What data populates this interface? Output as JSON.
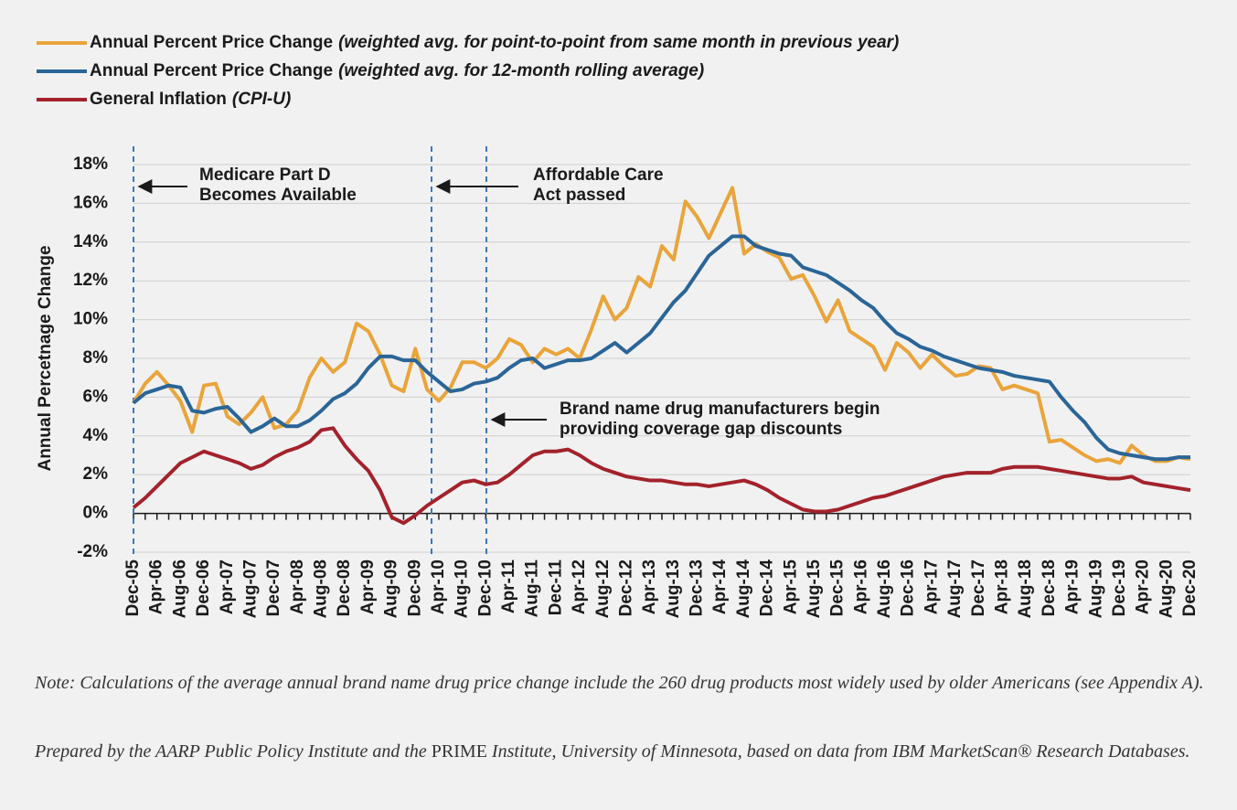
{
  "chart_data": {
    "type": "line",
    "y_label": "Annual Percetnage Change",
    "categories": [
      "Dec-05",
      null,
      "Apr-06",
      null,
      "Aug-06",
      null,
      "Dec-06",
      null,
      "Apr-07",
      null,
      "Aug-07",
      null,
      "Dec-07",
      null,
      "Apr-08",
      null,
      "Aug-08",
      null,
      "Dec-08",
      null,
      "Apr-09",
      null,
      "Aug-09",
      null,
      "Dec-09",
      null,
      "Apr-10",
      null,
      "Aug-10",
      null,
      "Dec-10",
      null,
      "Apr-11",
      null,
      "Aug-11",
      null,
      "Dec-11",
      null,
      "Apr-12",
      null,
      "Aug-12",
      null,
      "Dec-12",
      null,
      "Apr-13",
      null,
      "Aug-13",
      null,
      "Dec-13",
      null,
      "Apr-14",
      null,
      "Aug-14",
      null,
      "Dec-14",
      null,
      "Apr-15",
      null,
      "Aug-15",
      null,
      "Dec-15",
      null,
      "Apr-16",
      null,
      "Aug-16",
      null,
      "Dec-16",
      null,
      "Apr-17",
      null,
      "Aug-17",
      null,
      "Dec-17",
      null,
      "Apr-18",
      null,
      "Aug-18",
      null,
      "Dec-18",
      null,
      "Apr-19",
      null,
      "Aug-19",
      null,
      "Dec-19",
      null,
      "Apr-20",
      null,
      "Aug-20",
      null,
      "Dec-20"
    ],
    "series": [
      {
        "name": "Annual Percent Price Change",
        "note": "(weighted avg. for point-to-point from same month in previous year)",
        "color": "#e9a43a",
        "values": [
          5.7,
          6.7,
          7.3,
          6.6,
          5.8,
          4.2,
          6.6,
          6.7,
          5.0,
          4.6,
          5.2,
          6.0,
          4.4,
          4.6,
          5.3,
          7.0,
          8.0,
          7.3,
          7.8,
          9.8,
          9.4,
          8.2,
          6.6,
          6.3,
          8.5,
          6.4,
          5.8,
          6.5,
          7.8,
          7.8,
          7.5,
          8.0,
          9.0,
          8.7,
          7.8,
          8.5,
          8.2,
          8.5,
          8.0,
          9.5,
          11.2,
          10.0,
          10.6,
          12.2,
          11.7,
          13.8,
          13.1,
          16.1,
          15.3,
          14.2,
          15.5,
          16.8,
          13.4,
          13.9,
          13.5,
          13.2,
          12.1,
          12.3,
          11.2,
          9.9,
          11.0,
          9.4,
          9.0,
          8.6,
          7.4,
          8.8,
          8.3,
          7.5,
          8.2,
          7.6,
          7.1,
          7.2,
          7.6,
          7.5,
          6.4,
          6.6,
          6.4,
          6.2,
          3.7,
          3.8,
          3.4,
          3.0,
          2.7,
          2.8,
          2.6,
          3.5,
          3.0,
          2.7,
          2.7,
          2.9,
          2.8
        ]
      },
      {
        "name": "Annual Percent Price Change",
        "note": "(weighted avg. for 12-month rolling average)",
        "color": "#2b6597",
        "values": [
          5.7,
          6.2,
          6.4,
          6.6,
          6.5,
          5.3,
          5.2,
          5.4,
          5.5,
          4.9,
          4.2,
          4.5,
          4.9,
          4.5,
          4.5,
          4.8,
          5.3,
          5.9,
          6.2,
          6.7,
          7.5,
          8.1,
          8.1,
          7.9,
          7.9,
          7.3,
          6.8,
          6.3,
          6.4,
          6.7,
          6.8,
          7.0,
          7.5,
          7.9,
          8.0,
          7.5,
          7.7,
          7.9,
          7.9,
          8.0,
          8.4,
          8.8,
          8.3,
          8.8,
          9.3,
          10.1,
          10.9,
          11.5,
          12.4,
          13.3,
          13.8,
          14.3,
          14.3,
          13.8,
          13.6,
          13.4,
          13.3,
          12.7,
          12.5,
          12.3,
          11.9,
          11.5,
          11.0,
          10.6,
          9.9,
          9.3,
          9.0,
          8.6,
          8.4,
          8.1,
          7.9,
          7.7,
          7.5,
          7.4,
          7.3,
          7.1,
          7.0,
          6.9,
          6.8,
          6.0,
          5.3,
          4.7,
          3.9,
          3.3,
          3.1,
          3.0,
          2.9,
          2.8,
          2.8,
          2.9,
          2.9
        ]
      },
      {
        "name": "General Inflation",
        "note": "(CPI-U)",
        "color": "#a3222b",
        "values": [
          0.3,
          0.8,
          1.4,
          2.0,
          2.6,
          2.9,
          3.2,
          3.0,
          2.8,
          2.6,
          2.3,
          2.5,
          2.9,
          3.2,
          3.4,
          3.7,
          4.3,
          4.4,
          3.5,
          2.8,
          2.2,
          1.2,
          -0.2,
          -0.5,
          -0.1,
          0.4,
          0.8,
          1.2,
          1.6,
          1.7,
          1.5,
          1.6,
          2.0,
          2.5,
          3.0,
          3.2,
          3.2,
          3.3,
          3.0,
          2.6,
          2.3,
          2.1,
          1.9,
          1.8,
          1.7,
          1.7,
          1.6,
          1.5,
          1.5,
          1.4,
          1.5,
          1.6,
          1.7,
          1.5,
          1.2,
          0.8,
          0.5,
          0.2,
          0.1,
          0.1,
          0.2,
          0.4,
          0.6,
          0.8,
          0.9,
          1.1,
          1.3,
          1.5,
          1.7,
          1.9,
          2.0,
          2.1,
          2.1,
          2.1,
          2.3,
          2.4,
          2.4,
          2.4,
          2.3,
          2.2,
          2.1,
          2.0,
          1.9,
          1.8,
          1.8,
          1.9,
          1.6,
          1.5,
          1.4,
          1.3,
          1.2
        ]
      }
    ],
    "ylim": [
      -2,
      18
    ],
    "yticks": [
      {
        "value": -2,
        "label": "-2%"
      },
      {
        "value": 0,
        "label": "0%"
      },
      {
        "value": 2,
        "label": "2%"
      },
      {
        "value": 4,
        "label": "4%"
      },
      {
        "value": 6,
        "label": "6%"
      },
      {
        "value": 8,
        "label": "8%"
      },
      {
        "value": 10,
        "label": "10%"
      },
      {
        "value": 12,
        "label": "12%"
      },
      {
        "value": 14,
        "label": "14%"
      },
      {
        "value": 16,
        "label": "16%"
      },
      {
        "value": 18,
        "label": "18%"
      }
    ],
    "grid": true,
    "legend": "top-left",
    "annotations": [
      {
        "lines": [
          "Medicare Part D",
          "Becomes Available"
        ]
      },
      {
        "lines": [
          "Affordable Care",
          "Act passed"
        ]
      },
      {
        "lines": [
          "Brand name drug manufacturers begin",
          "providing coverage gap discounts"
        ]
      }
    ]
  },
  "notes": [
    [
      "Note: Calculations of the average annual brand name drug price change include the 260 drug products most widely used by older Americans (see Appendix A)."
    ],
    [
      "Prepared by the AARP Public Policy Institute and the ",
      "PRIME",
      " Institute, University of Minnesota, based on data from IBM MarketScan® Research Databases."
    ]
  ]
}
